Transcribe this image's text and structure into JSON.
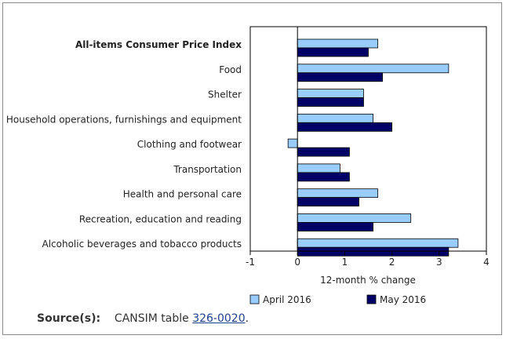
{
  "chart_data": {
    "type": "bar",
    "orientation": "horizontal",
    "categories": [
      "All-items Consumer Price Index",
      "Food",
      "Shelter",
      "Household operations, furnishings and equipment",
      "Clothing and footwear",
      "Transportation",
      "Health and personal care",
      "Recreation, education and reading",
      "Alcoholic beverages and tobacco products"
    ],
    "bold_categories": [
      "All-items Consumer Price Index"
    ],
    "series": [
      {
        "name": "April 2016",
        "color": "#99ccff",
        "values": [
          1.7,
          3.2,
          1.4,
          1.6,
          -0.2,
          0.9,
          1.7,
          2.4,
          3.4
        ]
      },
      {
        "name": "May 2016",
        "color": "#000066",
        "values": [
          1.5,
          1.8,
          1.4,
          2.0,
          1.1,
          1.1,
          1.3,
          1.6,
          3.2
        ]
      }
    ],
    "xlabel": "12-month % change",
    "xlim": [
      -1,
      4
    ],
    "xticks": [
      "-1",
      "0",
      "1",
      "2",
      "3",
      "4"
    ],
    "grid": false,
    "legend_position": "bottom"
  },
  "source": {
    "label": "Source(s):",
    "prefix": "CANSIM table ",
    "link_text": "326-0020",
    "suffix": "."
  }
}
